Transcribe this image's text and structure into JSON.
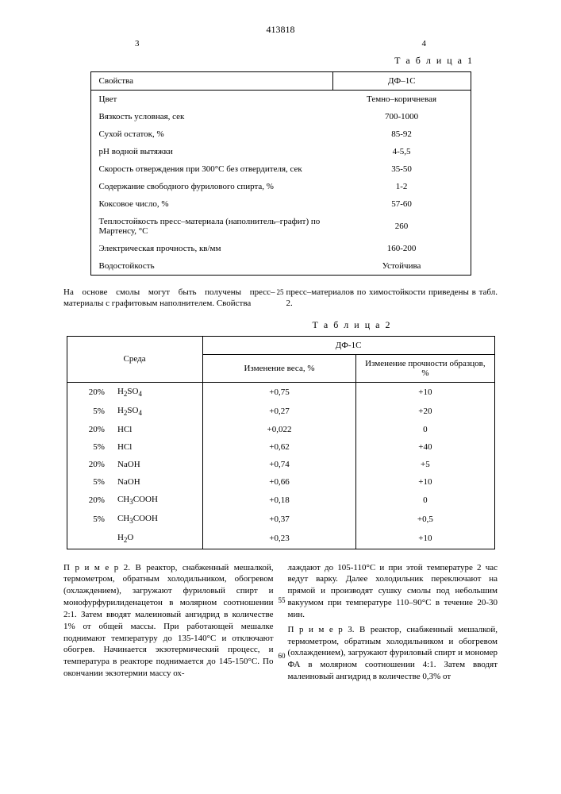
{
  "doc_number": "413818",
  "page_left": "3",
  "page_right": "4",
  "table1_label": "Т а б л и ц а  1",
  "table2_label": "Т а б л и ц а  2",
  "t1": {
    "header_prop": "Свойства",
    "header_val": "ДФ–1С",
    "rows": [
      {
        "prop": "Цвет",
        "val": "Темно–коричневая"
      },
      {
        "prop": "Вязкость условная, сек",
        "val": "700-1000"
      },
      {
        "prop": "Сухой остаток, %",
        "val": "85-92"
      },
      {
        "prop": "рН водной вытяжки",
        "val": "4-5,5"
      },
      {
        "prop": "Скорость отверждения при 300°С без отвердителя, сек",
        "val": "35-50"
      },
      {
        "prop": "Содержание свободного фурилового спирта, %",
        "val": "1-2"
      },
      {
        "prop": "Коксовое число, %",
        "val": "57-60"
      },
      {
        "prop": "Теплостойкость пресс–материала (наполнитель–графит) по Мартенсу, °С",
        "val": "260"
      },
      {
        "prop": "Электрическая прочность, кв/мм",
        "val": "160-200"
      },
      {
        "prop": "Водостойкость",
        "val": "Устойчива"
      }
    ]
  },
  "mid_left": "На основе смолы могут быть получены пресс–материалы с графитовым наполнителем. Свойства",
  "mid_25": "25",
  "mid_right": "пресс–материалов по химостойкости приведены в табл. 2.",
  "t2": {
    "header_env": "Среда",
    "header_group": "ДФ-1С",
    "header_wchg": "Изменение веса, %",
    "header_schg": "Изменение прочности образцов, %",
    "rows": [
      {
        "pct": "20%",
        "chem": "H2SO4",
        "w": "+0,75",
        "s": "+10"
      },
      {
        "pct": "5%",
        "chem": "H2SO4",
        "w": "+0,27",
        "s": "+20"
      },
      {
        "pct": "20%",
        "chem": "HCl",
        "w": "+0,022",
        "s": "0"
      },
      {
        "pct": "5%",
        "chem": "HCl",
        "w": "+0,62",
        "s": "+40"
      },
      {
        "pct": "20%",
        "chem": "NaOH",
        "w": "+0,74",
        "s": "+5"
      },
      {
        "pct": "5%",
        "chem": "NaOH",
        "w": "+0,66",
        "s": "+10"
      },
      {
        "pct": "20%",
        "chem": "CH3COOH",
        "w": "+0,18",
        "s": "0"
      },
      {
        "pct": "5%",
        "chem": "CH3COOH",
        "w": "+0,37",
        "s": "+0,5"
      },
      {
        "pct": "",
        "chem": "H2O",
        "w": "+0,23",
        "s": "+10"
      }
    ]
  },
  "ln55": "55",
  "ln60": "60",
  "bottom_left": "П р и м е р  2. В реактор, снабженный мешалкой, термометром, обратным холодильником, обогревом (охлаждением), загружают фуриловый спирт и монофурфурилиденацетон в молярном соотношении 2:1. Затем вводят малеиновый ангидрид в количестве 1% от общей массы. При работающей мешалке поднимают температуру до 135-140°С и отключают обогрев. Начинается экзотермический процесс, и температура в реакторе поднимается до 145-150°С. По окончании экзотермии массу ох-",
  "bottom_right_p1": "лаждают до 105-110°С и при этой температуре 2 час ведут варку. Далее холодильник переключают на прямой и производят сушку смолы под небольшим вакуумом при температуре 110–90°С в течение 20-30 мин.",
  "bottom_right_p2": "П р и м е р  3. В реактор, снабженный мешалкой, термометром, обратным холодильником и обогревом (охлаждением), загружают фуриловый спирт и мономер ФА в молярном соотношении 4:1. Затем вводят малеиновый ангидрид в количестве 0,3% от"
}
